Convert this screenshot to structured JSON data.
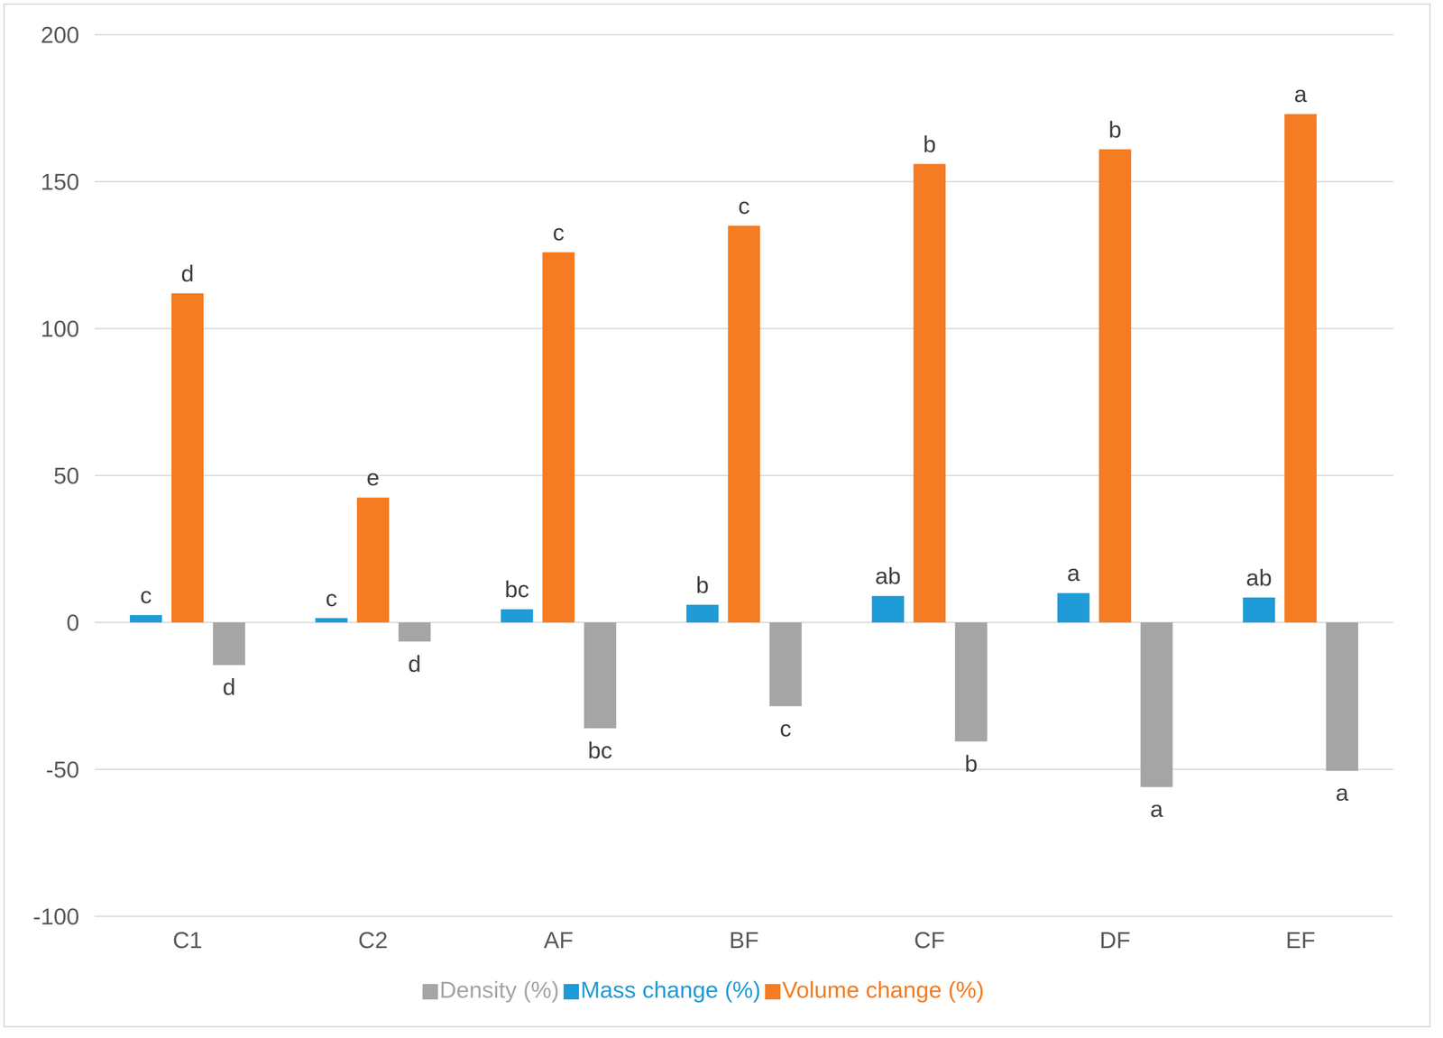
{
  "chart_data": {
    "type": "bar",
    "categories": [
      "C1",
      "C2",
      "AF",
      "BF",
      "CF",
      "DF",
      "EF"
    ],
    "series": [
      {
        "name": "Mass change (%)",
        "color": "#1f9bd7",
        "values": [
          2.5,
          1.5,
          4.5,
          6,
          9,
          10,
          8.5
        ],
        "annotations": [
          "c",
          "c",
          "bc",
          "b",
          "ab",
          "a",
          "ab"
        ]
      },
      {
        "name": "Volume change (%)",
        "color": "#f57c22",
        "values": [
          112,
          42.5,
          126,
          135,
          156,
          161,
          173
        ],
        "annotations": [
          "d",
          "e",
          "c",
          "c",
          "b",
          "b",
          "a"
        ]
      },
      {
        "name": "Density (%)",
        "color": "#a5a5a5",
        "values": [
          -14.5,
          -6.5,
          -36,
          -28.5,
          -40.5,
          -56,
          -50.5
        ],
        "annotations": [
          "d",
          "d",
          "bc",
          "c",
          "b",
          "a",
          "a"
        ]
      }
    ],
    "ylim": [
      -100,
      200
    ],
    "yticks": [
      -100,
      -50,
      0,
      50,
      100,
      150,
      200
    ],
    "grid": true,
    "legend": "bottom"
  }
}
